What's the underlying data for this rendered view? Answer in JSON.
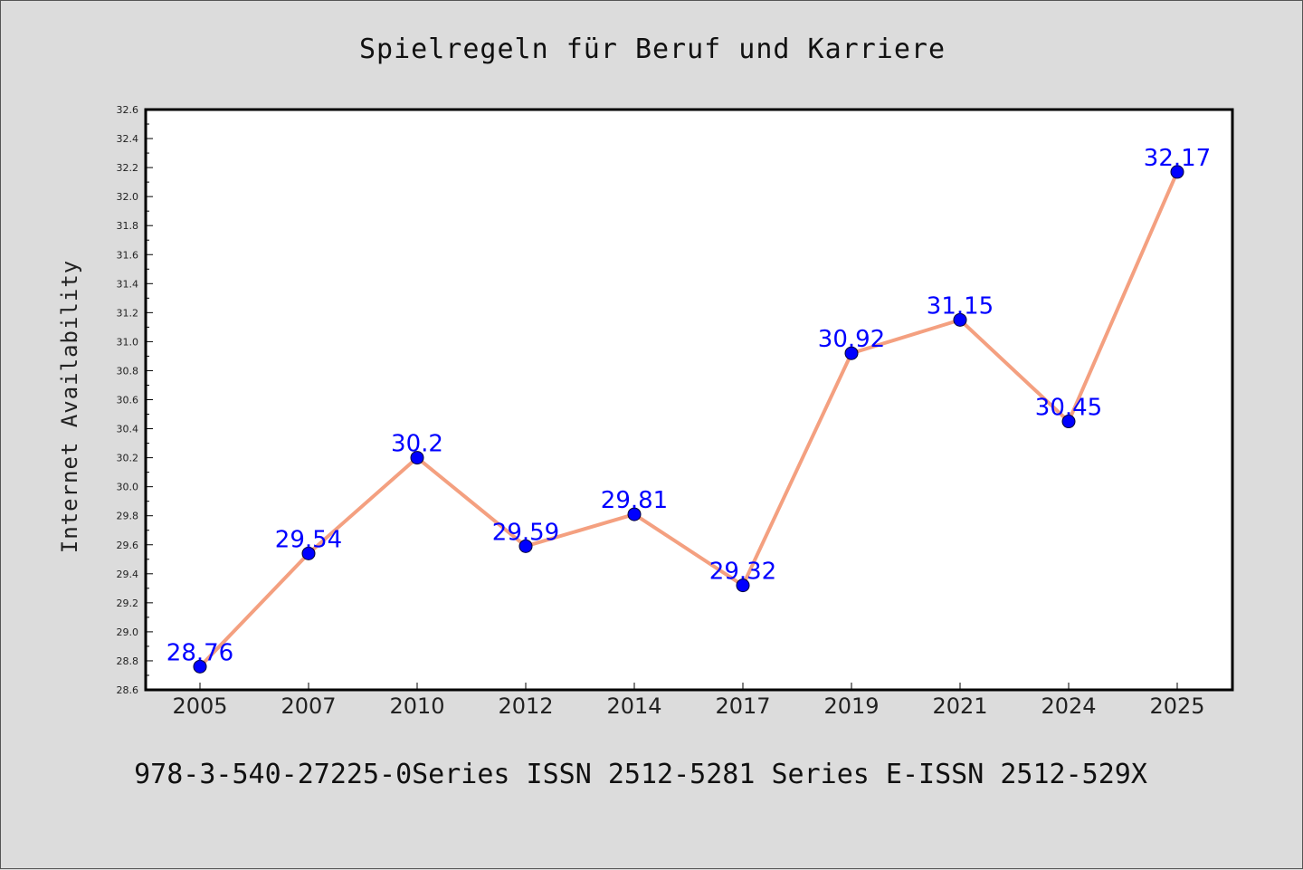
{
  "chart_data": {
    "type": "line",
    "title": "Spielregeln für Beruf und Karriere",
    "xlabel": "",
    "ylabel": "Internet Availability",
    "categories": [
      "2005",
      "2007",
      "2010",
      "2012",
      "2014",
      "2017",
      "2019",
      "2021",
      "2024",
      "2025"
    ],
    "series": [
      {
        "values": [
          28.76,
          29.54,
          30.2,
          29.59,
          29.81,
          29.32,
          30.92,
          31.15,
          30.45,
          32.17
        ],
        "labels": [
          "28.76",
          "29.54",
          "30.2",
          "29.59",
          "29.81",
          "29.32",
          "30.92",
          "31.15",
          "30.45",
          "32.17"
        ],
        "line_color": "#f4a080",
        "marker_color": "#0000ff"
      }
    ],
    "ylim": [
      28.6,
      32.6
    ],
    "yticks": [
      "28.6",
      "28.8",
      "29.0",
      "29.2",
      "29.4",
      "29.6",
      "29.8",
      "30.0",
      "30.2",
      "30.4",
      "30.6",
      "30.8",
      "31.0",
      "31.2",
      "31.4",
      "31.6",
      "31.8",
      "32.0",
      "32.2",
      "32.4",
      "32.6"
    ],
    "grid": false,
    "legend": "none",
    "footer": "978-3-540-27225-0Series ISSN 2512-5281 Series E-ISSN 2512-529X"
  }
}
